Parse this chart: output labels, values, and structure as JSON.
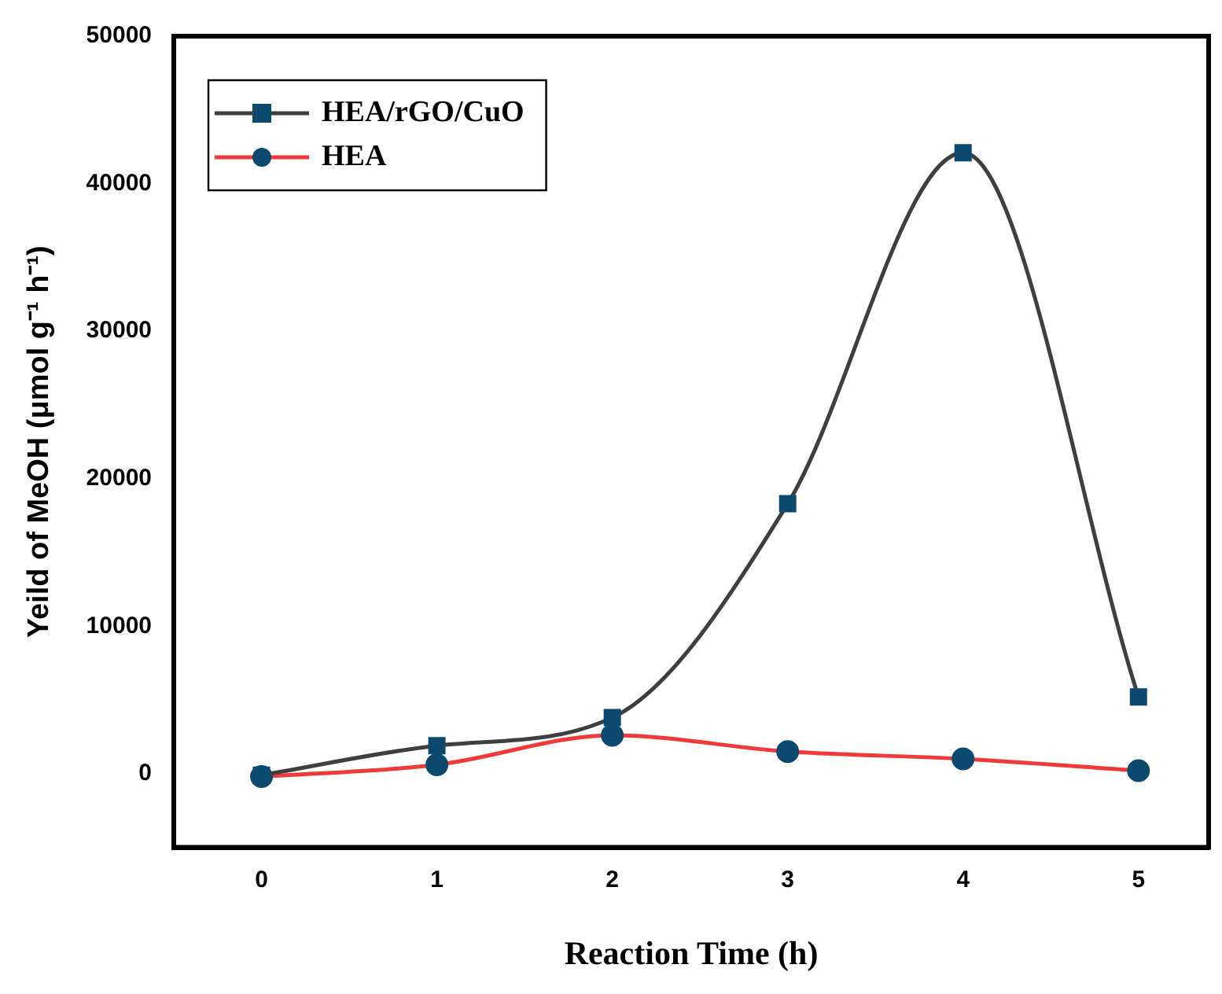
{
  "chart_data": {
    "type": "line",
    "xlabel": "Reaction Time (h)",
    "ylabel": "Yeild of MeOH (μmol g⁻¹ h⁻¹)",
    "x": [
      0,
      1,
      2,
      3,
      4,
      5
    ],
    "series": [
      {
        "name": "HEA/rGO/CuO",
        "color": "#3f3f3f",
        "colors": [
          "#0b4a6e",
          "#0b4a6e",
          "#0b4a6e",
          "#0b4a6e",
          "#0b4a6e",
          "#0b4a6e"
        ],
        "marker": "square",
        "values": [
          -100,
          1900,
          3800,
          18300,
          42100,
          5200
        ]
      },
      {
        "name": "HEA",
        "color": "#f03a3a",
        "colors": [
          "#0b4a6e",
          "#0b4a6e",
          "#0b4a6e",
          "#0b4a6e",
          "#0b4a6e",
          "#0b4a6e"
        ],
        "marker": "circle",
        "values": [
          -200,
          600,
          2600,
          1500,
          1000,
          200
        ]
      }
    ],
    "xlim": [
      -0.5,
      5.4
    ],
    "xticks": [
      0,
      1,
      2,
      3,
      4,
      5
    ],
    "ylim": [
      -5000,
      50000
    ],
    "yticks": [
      0,
      10000,
      20000,
      30000,
      40000,
      50000
    ],
    "grid": false,
    "legend": "top left"
  }
}
